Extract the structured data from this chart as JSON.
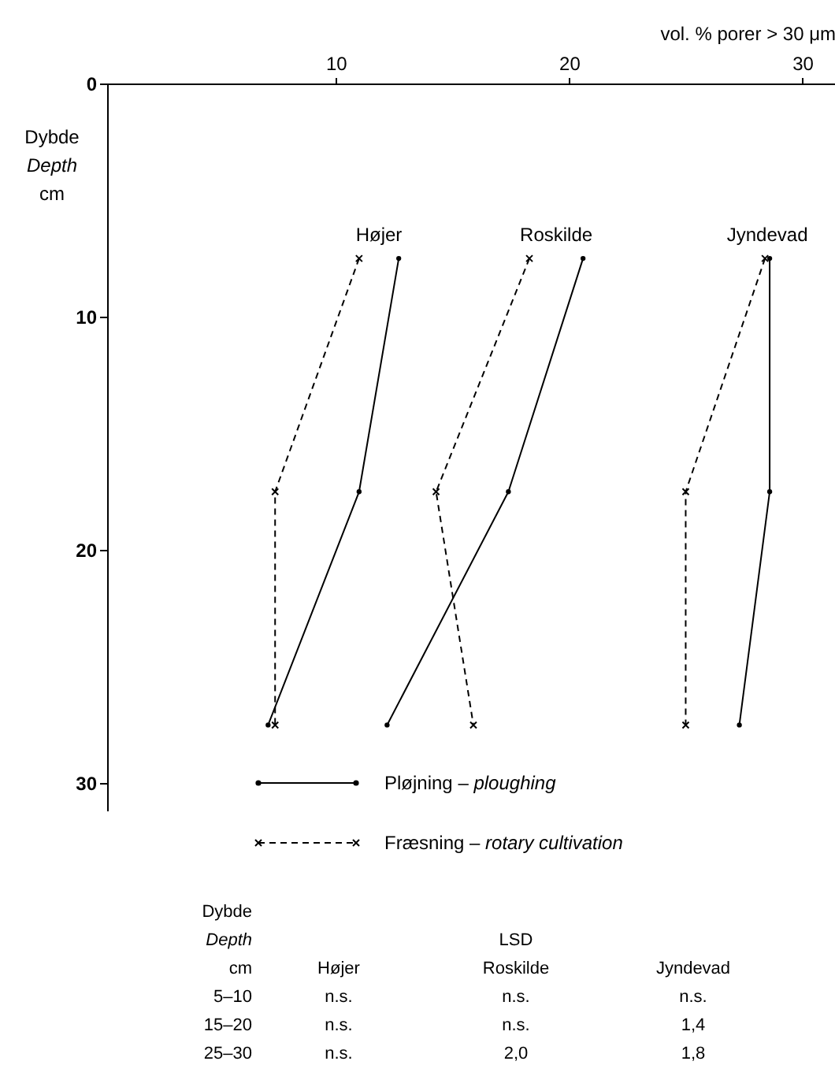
{
  "chart_data": {
    "type": "line",
    "xlabel": "vol. % porer > 30 μm",
    "ylabel": "Dybde\nDepth\ncm",
    "xlim": [
      0.2,
      31.4
    ],
    "xticks": [
      10,
      20,
      30
    ],
    "ylim": [
      31.2,
      0
    ],
    "yticks": [
      0,
      10,
      20,
      30
    ],
    "grid": false,
    "legend": "bottom",
    "series": [
      {
        "name": "Pløjning – ploughing",
        "color": "#000000",
        "line_style": "solid",
        "marker": "circle",
        "x": [
          12.7,
          11.0,
          7.1
        ],
        "values": [
          7.5,
          17.5,
          27.5
        ]
      },
      {
        "name": "Fræsning – rotary cultivation",
        "color": "#000000",
        "line_style": "dashed",
        "marker": "cross",
        "x": [
          11.0,
          7.4,
          7.4
        ],
        "values": [
          7.5,
          17.5,
          27.5
        ]
      },
      {
        "color": "#000000",
        "line_style": "solid",
        "marker": "circle",
        "x": [
          20.6,
          17.4,
          12.2
        ],
        "values": [
          7.5,
          17.5,
          27.5
        ]
      },
      {
        "color": "#000000",
        "line_style": "dashed",
        "marker": "cross",
        "x": [
          18.3,
          14.3,
          15.9
        ],
        "values": [
          7.5,
          17.5,
          27.5
        ]
      },
      {
        "color": "#000000",
        "line_style": "solid",
        "marker": "circle",
        "x": [
          28.6,
          28.6,
          27.3
        ],
        "values": [
          7.5,
          17.5,
          27.5
        ]
      },
      {
        "color": "#000000",
        "line_style": "dashed",
        "marker": "cross",
        "x": [
          28.4,
          25.0,
          25.0
        ],
        "values": [
          7.5,
          17.5,
          27.5
        ]
      }
    ],
    "annotations": [
      "Højer",
      "Roskilde",
      "Jyndevad",
      "Dybde\nDepth\ncm",
      "Højer",
      "LSD\nRoskilde",
      "Jyndevad",
      "5–10",
      "n.s.",
      "n.s.",
      "n.s.",
      "15–20",
      "n.s.",
      "n.s.",
      "1,4",
      "25–30",
      "n.s.",
      "2,0",
      "1,8"
    ]
  }
}
